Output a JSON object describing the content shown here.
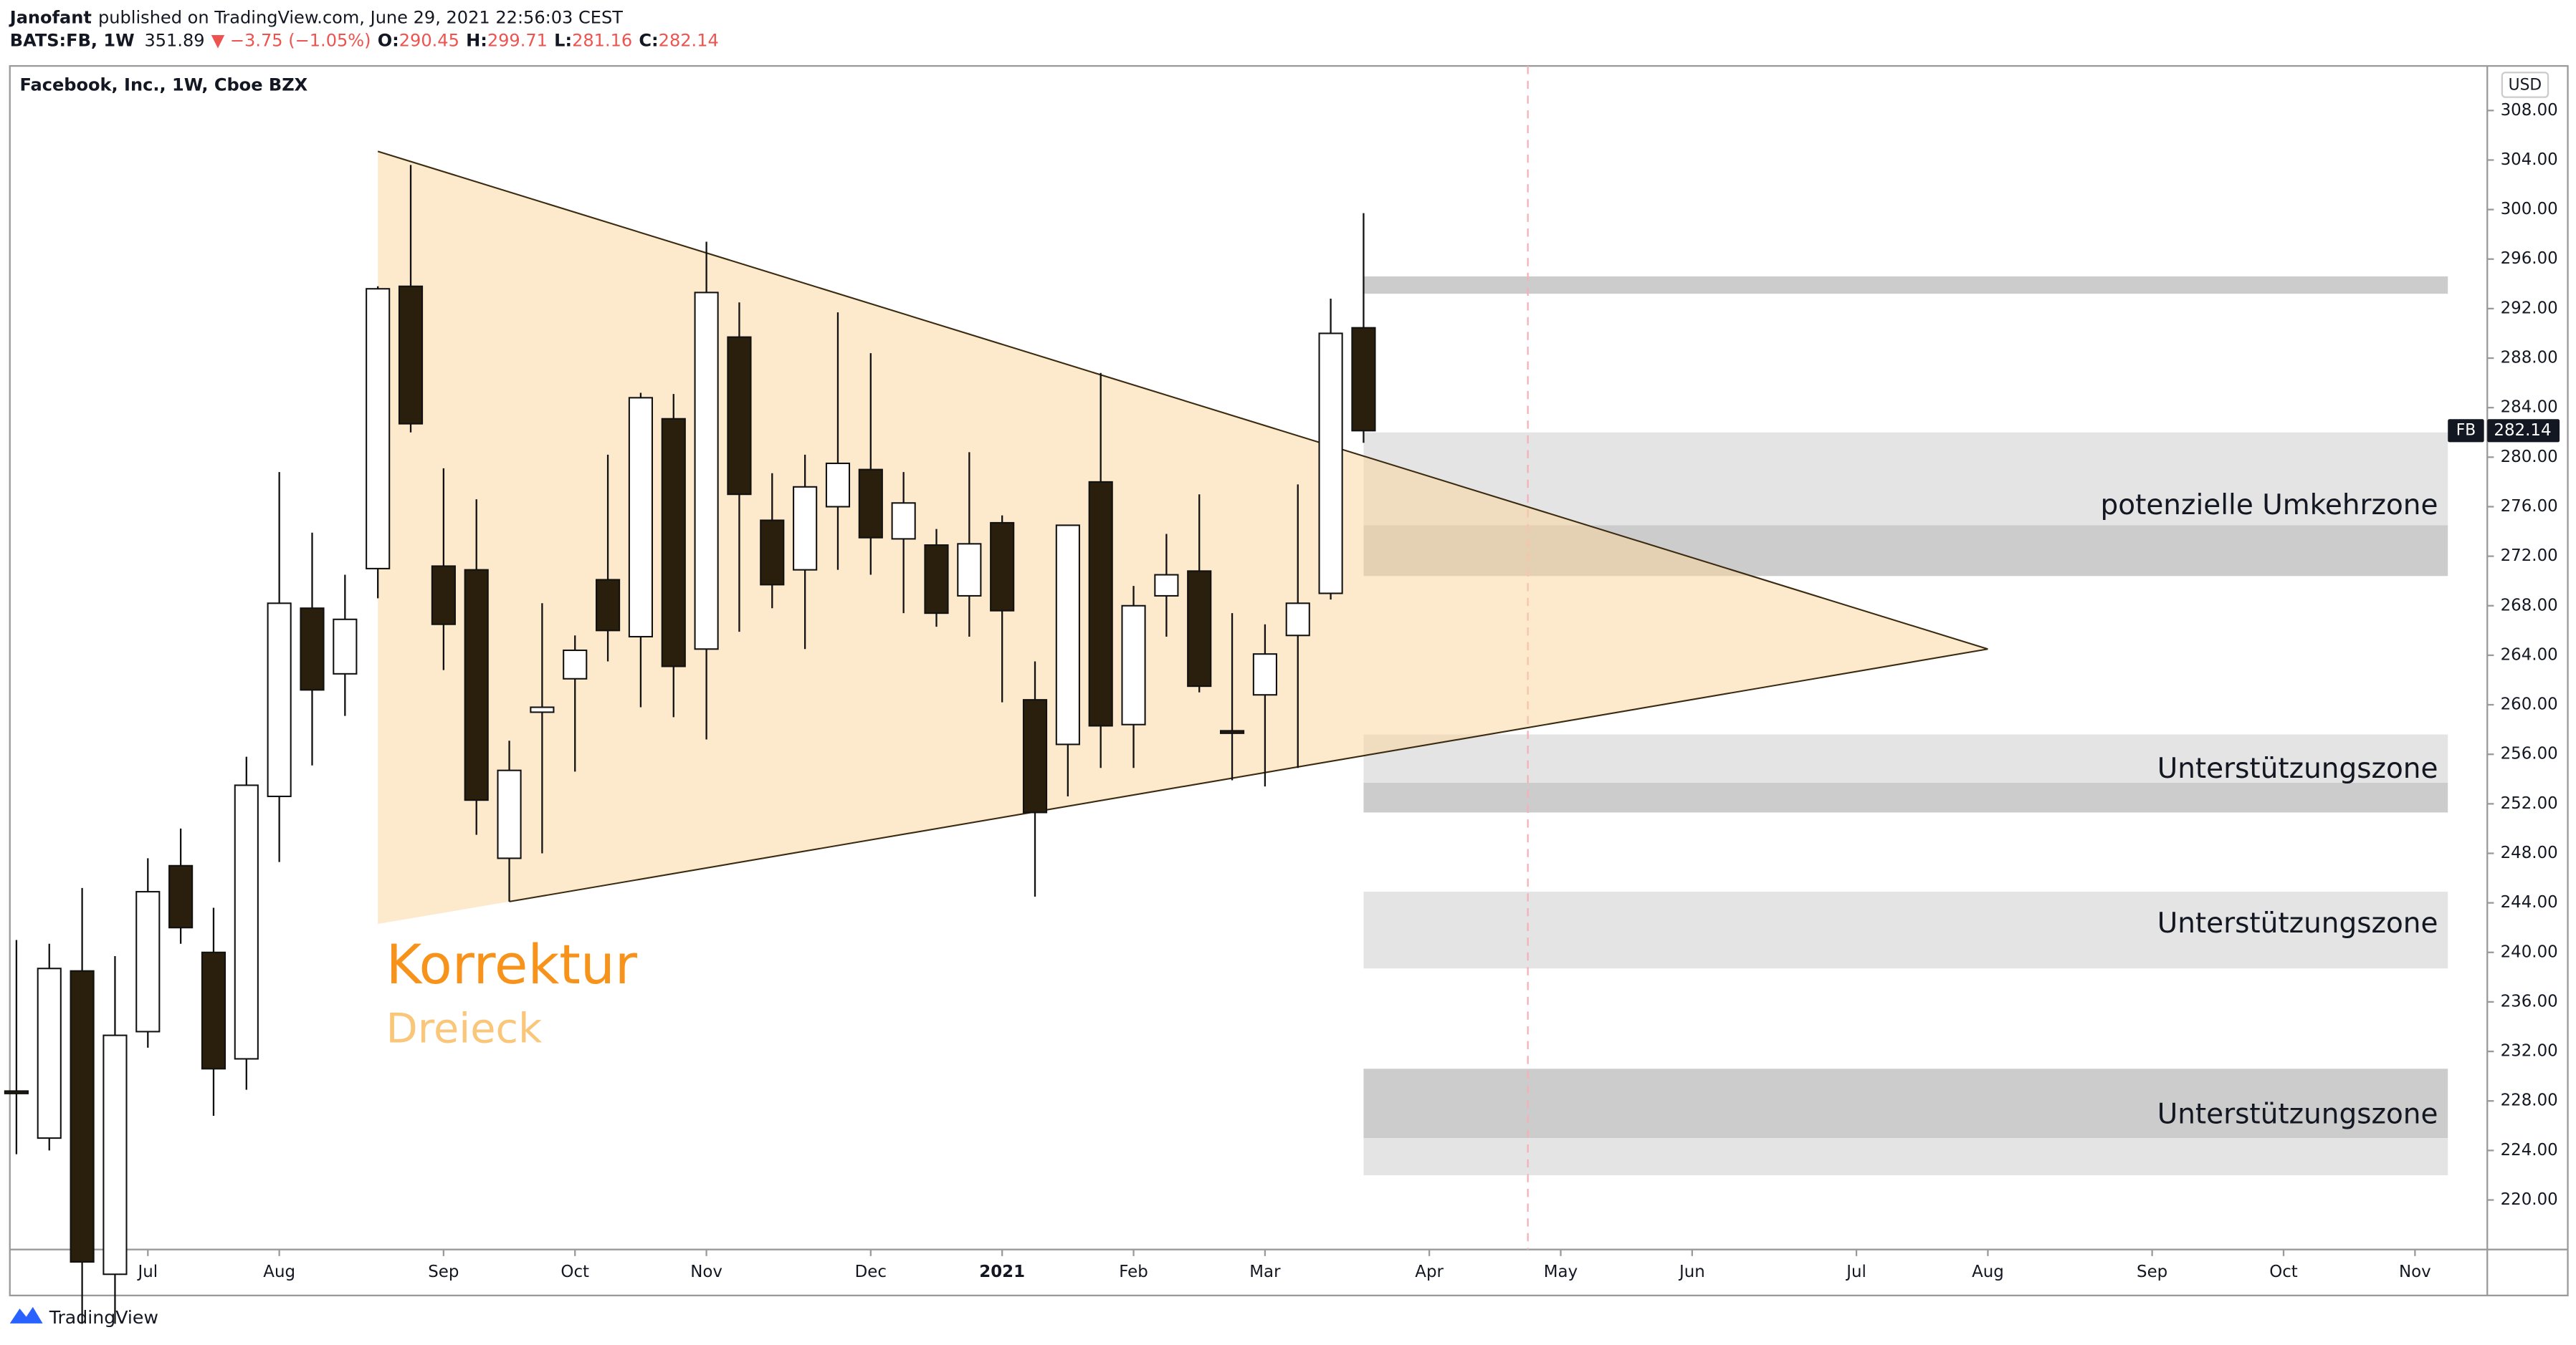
{
  "header": {
    "author": "Janofant",
    "published": "published on TradingView.com, June 29, 2021 22:56:03 CEST",
    "symbol": "BATS:FB, 1W",
    "last": "351.89",
    "change": "▼ −3.75 (−1.05%)",
    "ohlc": [
      {
        "label": "O:",
        "value": "290.45"
      },
      {
        "label": "H:",
        "value": "299.71"
      },
      {
        "label": "L:",
        "value": "281.16"
      },
      {
        "label": "C:",
        "value": "282.14"
      }
    ]
  },
  "footer": {
    "brand": "TradingView"
  },
  "chart_data": {
    "type": "candlestick",
    "title": "Facebook, Inc., 1W, Cboe BZX",
    "currency": "USD",
    "price_tag": {
      "symbol": "FB"
    },
    "up_color": "#ffffff",
    "down_color": "#2a1e0c",
    "x": [
      0,
      1,
      2,
      3,
      4,
      5,
      6,
      7,
      8,
      9,
      10,
      11,
      12,
      13,
      14,
      15,
      16,
      17,
      18,
      19,
      20,
      21,
      22,
      23,
      24,
      25,
      26,
      27,
      28,
      29,
      30,
      31,
      32,
      33,
      34,
      35,
      36,
      37,
      38,
      39,
      40,
      41
    ],
    "open": [
      228.8,
      225,
      238.5,
      214,
      233.6,
      247,
      240,
      231.4,
      252.6,
      267.8,
      262.5,
      271,
      293.8,
      271.2,
      270.9,
      247.6,
      259.4,
      262.1,
      270.1,
      265.5,
      283.1,
      264.5,
      289.7,
      274.9,
      270.9,
      276,
      279,
      273.4,
      272.9,
      268.8,
      274.7,
      260.4,
      256.8,
      278,
      258.4,
      268.8,
      270.8,
      257.9,
      260.8,
      265.6,
      269,
      290.45
    ],
    "high": [
      241,
      240.7,
      245.2,
      239.7,
      247.6,
      250,
      243.6,
      255.8,
      278.8,
      273.9,
      270.5,
      293.8,
      303.6,
      279.1,
      276.6,
      257.1,
      268.2,
      265.6,
      280.2,
      285.2,
      285.1,
      297.4,
      292.5,
      278.7,
      280.2,
      291.7,
      288.4,
      278.8,
      274.2,
      280.4,
      275.3,
      263.5,
      274.5,
      286.8,
      269.6,
      273.8,
      277,
      267.4,
      266.5,
      277.8,
      292.8,
      299.71
    ],
    "low": [
      223.7,
      224,
      210,
      210,
      232.3,
      240.7,
      226.8,
      228.9,
      247.3,
      255.1,
      259.1,
      268.6,
      282,
      262.8,
      249.5,
      244.1,
      248,
      254.6,
      263.5,
      259.8,
      259,
      257.2,
      265.9,
      267.8,
      264.5,
      270.9,
      270.5,
      267.4,
      266.3,
      265.5,
      260.2,
      244.5,
      252.6,
      254.9,
      254.9,
      265.5,
      261,
      253.9,
      253.4,
      254.9,
      268.5,
      281.16
    ],
    "close": [
      228.7,
      238.7,
      215,
      233.3,
      244.9,
      242,
      230.6,
      253.5,
      268.2,
      261.2,
      266.9,
      293.6,
      282.7,
      266.5,
      252.3,
      254.7,
      259.8,
      264.4,
      266,
      284.8,
      263.1,
      293.3,
      277,
      269.7,
      277.6,
      279.5,
      273.5,
      276.3,
      267.4,
      273,
      267.6,
      251.3,
      274.5,
      258.3,
      268,
      270.5,
      261.5,
      257.7,
      264.1,
      268.2,
      290,
      282.14
    ],
    "xlim": [
      -0.2,
      75.2
    ],
    "xticks": [
      {
        "value": 4,
        "label": "Jul"
      },
      {
        "value": 8,
        "label": "Aug"
      },
      {
        "value": 13,
        "label": "Sep"
      },
      {
        "value": 17,
        "label": "Oct"
      },
      {
        "value": 21,
        "label": "Nov"
      },
      {
        "value": 26,
        "label": "Dec"
      },
      {
        "value": 30,
        "label": "2021"
      },
      {
        "value": 34,
        "label": "Feb"
      },
      {
        "value": 38,
        "label": "Mar"
      },
      {
        "value": 43,
        "label": "Apr"
      },
      {
        "value": 47,
        "label": "May"
      },
      {
        "value": 51,
        "label": "Jun"
      },
      {
        "value": 56,
        "label": "Jul"
      },
      {
        "value": 60,
        "label": "Aug"
      },
      {
        "value": 65,
        "label": "Sep"
      },
      {
        "value": 69,
        "label": "Oct"
      },
      {
        "value": 73,
        "label": "Nov"
      }
    ],
    "ylim": [
      216.0,
      311.6
    ],
    "yticks": [
      {
        "value": 220,
        "label": "220.00"
      },
      {
        "value": 224,
        "label": "224.00"
      },
      {
        "value": 228,
        "label": "228.00"
      },
      {
        "value": 232,
        "label": "232.00"
      },
      {
        "value": 236,
        "label": "236.00"
      },
      {
        "value": 240,
        "label": "240.00"
      },
      {
        "value": 244,
        "label": "244.00"
      },
      {
        "value": 248,
        "label": "248.00"
      },
      {
        "value": 252,
        "label": "252.00"
      },
      {
        "value": 256,
        "label": "256.00"
      },
      {
        "value": 260,
        "label": "260.00"
      },
      {
        "value": 264,
        "label": "264.00"
      },
      {
        "value": 268,
        "label": "268.00"
      },
      {
        "value": 272,
        "label": "272.00"
      },
      {
        "value": 276,
        "label": "276.00"
      },
      {
        "value": 280,
        "label": "280.00"
      },
      {
        "value": 284,
        "label": "284.00"
      },
      {
        "value": 288,
        "label": "288.00"
      },
      {
        "value": 292,
        "label": "292.00"
      },
      {
        "value": 296,
        "label": "296.00"
      },
      {
        "value": 300,
        "label": "300.00"
      },
      {
        "value": 304,
        "label": "304.00"
      },
      {
        "value": 308,
        "label": "308.00"
      }
    ],
    "zones": [
      {
        "x": [
          41,
          74
        ],
        "y": [
          293.2,
          294.6
        ],
        "color": "#cccccc"
      },
      {
        "x": [
          41,
          74
        ],
        "y": [
          274.5,
          282.0
        ],
        "color": "#e4e4e4"
      },
      {
        "x": [
          41,
          74
        ],
        "y": [
          270.4,
          274.5
        ],
        "color": "#cccccc"
      },
      {
        "x": [
          41,
          74
        ],
        "y": [
          253.7,
          257.6
        ],
        "color": "#e4e4e4"
      },
      {
        "x": [
          41,
          74
        ],
        "y": [
          251.3,
          253.7
        ],
        "color": "#cccccc"
      },
      {
        "x": [
          41,
          74
        ],
        "y": [
          238.7,
          244.9
        ],
        "color": "#e4e4e4"
      },
      {
        "x": [
          41,
          74
        ],
        "y": [
          225.0,
          230.6
        ],
        "color": "#cccccc"
      },
      {
        "x": [
          41,
          74
        ],
        "y": [
          222.0,
          225.0
        ],
        "color": "#e4e4e4"
      }
    ],
    "annotations": [
      {
        "text": "potenzielle Umkehrzone",
        "y": 276.0
      },
      {
        "text": "Unterstützungszone",
        "y": 254.7
      },
      {
        "text": "Unterstützungszone",
        "y": 242.2
      },
      {
        "text": "Unterstützungszone",
        "y": 226.8
      }
    ],
    "pattern": {
      "title": "Korrektur",
      "subtitle": "Dreieck",
      "title_color": "#f7931a",
      "subtitle_color": "#f9c67a",
      "fill": "#fbd59c",
      "line_color": "#3a2a10",
      "upper": {
        "x": [
          11,
          60
        ],
        "y": [
          304.7,
          264.5
        ]
      },
      "lower": {
        "x": [
          15,
          60
        ],
        "y": [
          244.1,
          264.5
        ]
      },
      "base": {
        "x": [
          11
        ],
        "y": [
          242.3
        ]
      }
    },
    "marker_x": 46,
    "marker_color": "#f4b2b8"
  }
}
